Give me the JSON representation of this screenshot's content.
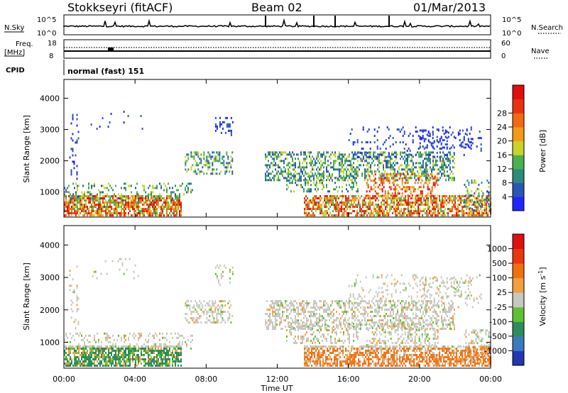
{
  "header": {
    "station": "Stokkseyri (fitACF)",
    "beam": "Beam 02",
    "date": "01/Mar/2013"
  },
  "aux_panels": {
    "nsky_label": "N.Sky",
    "nsky_ticks": [
      "10^5",
      "10^0"
    ],
    "nsearch_label": "N.Search",
    "nsearch_ticks": [
      "10^5",
      "10^0"
    ],
    "freq_label_line1": "Freq.",
    "freq_label_line2": "[MHz]",
    "freq_ticks": [
      "18",
      "8"
    ],
    "nave_label": "Nave",
    "nave_ticks": [
      "60",
      "0"
    ],
    "cpid_label": "CPID",
    "cpid_text": "normal (fast) 151"
  },
  "chart_data": [
    {
      "type": "heatmap",
      "name_label": "Power [dB]",
      "ylabel": "Slant Range [km]",
      "xlabel": "",
      "ylim": [
        200,
        4600
      ],
      "y_ticks": [
        "1000",
        "2000",
        "3000",
        "4000"
      ],
      "colorbar_ticks": [
        "4",
        "8",
        "12",
        "16",
        "20",
        "24",
        "28"
      ],
      "colorbar_colors": [
        "#1f26ff",
        "#2a56b4",
        "#2e8a7c",
        "#4caf50",
        "#c8d42a",
        "#f39a1a",
        "#ef6a10",
        "#e8320f",
        "#e20d0d"
      ]
    },
    {
      "type": "heatmap",
      "name_label": "Velocity [m s",
      "name_sup": "-1",
      "name_end": "]",
      "ylabel": "Slant Range [km]",
      "xlabel": "Time UT",
      "ylim": [
        200,
        4600
      ],
      "y_ticks": [
        "1000",
        "2000",
        "3000",
        "4000"
      ],
      "x_ticks": [
        "00:00",
        "04:00",
        "08:00",
        "12:00",
        "16:00",
        "20:00",
        "00:00"
      ],
      "colorbar_ticks": [
        "1000",
        "500",
        "100",
        "25",
        "-25",
        "-100",
        "-500",
        "-1000"
      ],
      "colorbar_colors": [
        "#2436b0",
        "#3a7abf",
        "#2e8c5a",
        "#5fc132",
        "#c8c8c0",
        "#f0a040",
        "#f07010",
        "#e83810",
        "#e01010"
      ]
    }
  ]
}
